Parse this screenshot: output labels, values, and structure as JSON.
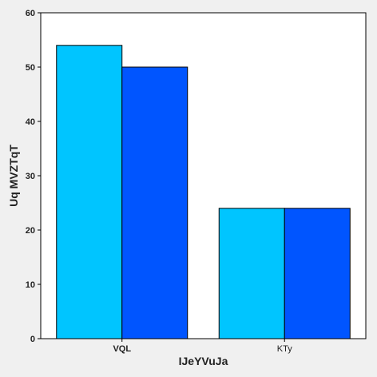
{
  "chart_data": {
    "type": "bar",
    "title": "",
    "xlabel": "IJeYVuJa",
    "ylabel": "Uq MVZTqT",
    "categories": [
      "VQL",
      "KTy"
    ],
    "category_bold": [
      true,
      false
    ],
    "series": [
      {
        "values": [
          54,
          24
        ],
        "color": "#00c5ff"
      },
      {
        "values": [
          50,
          24
        ],
        "color": "#0055ff"
      }
    ],
    "ylim": [
      0,
      60
    ],
    "yticks": [
      0,
      10,
      20,
      30,
      40,
      50,
      60
    ],
    "grid": false,
    "legend": "none",
    "colors": {
      "background": "#f0f0f0",
      "plot_background": "#ffffff",
      "outline": "#000000"
    }
  }
}
